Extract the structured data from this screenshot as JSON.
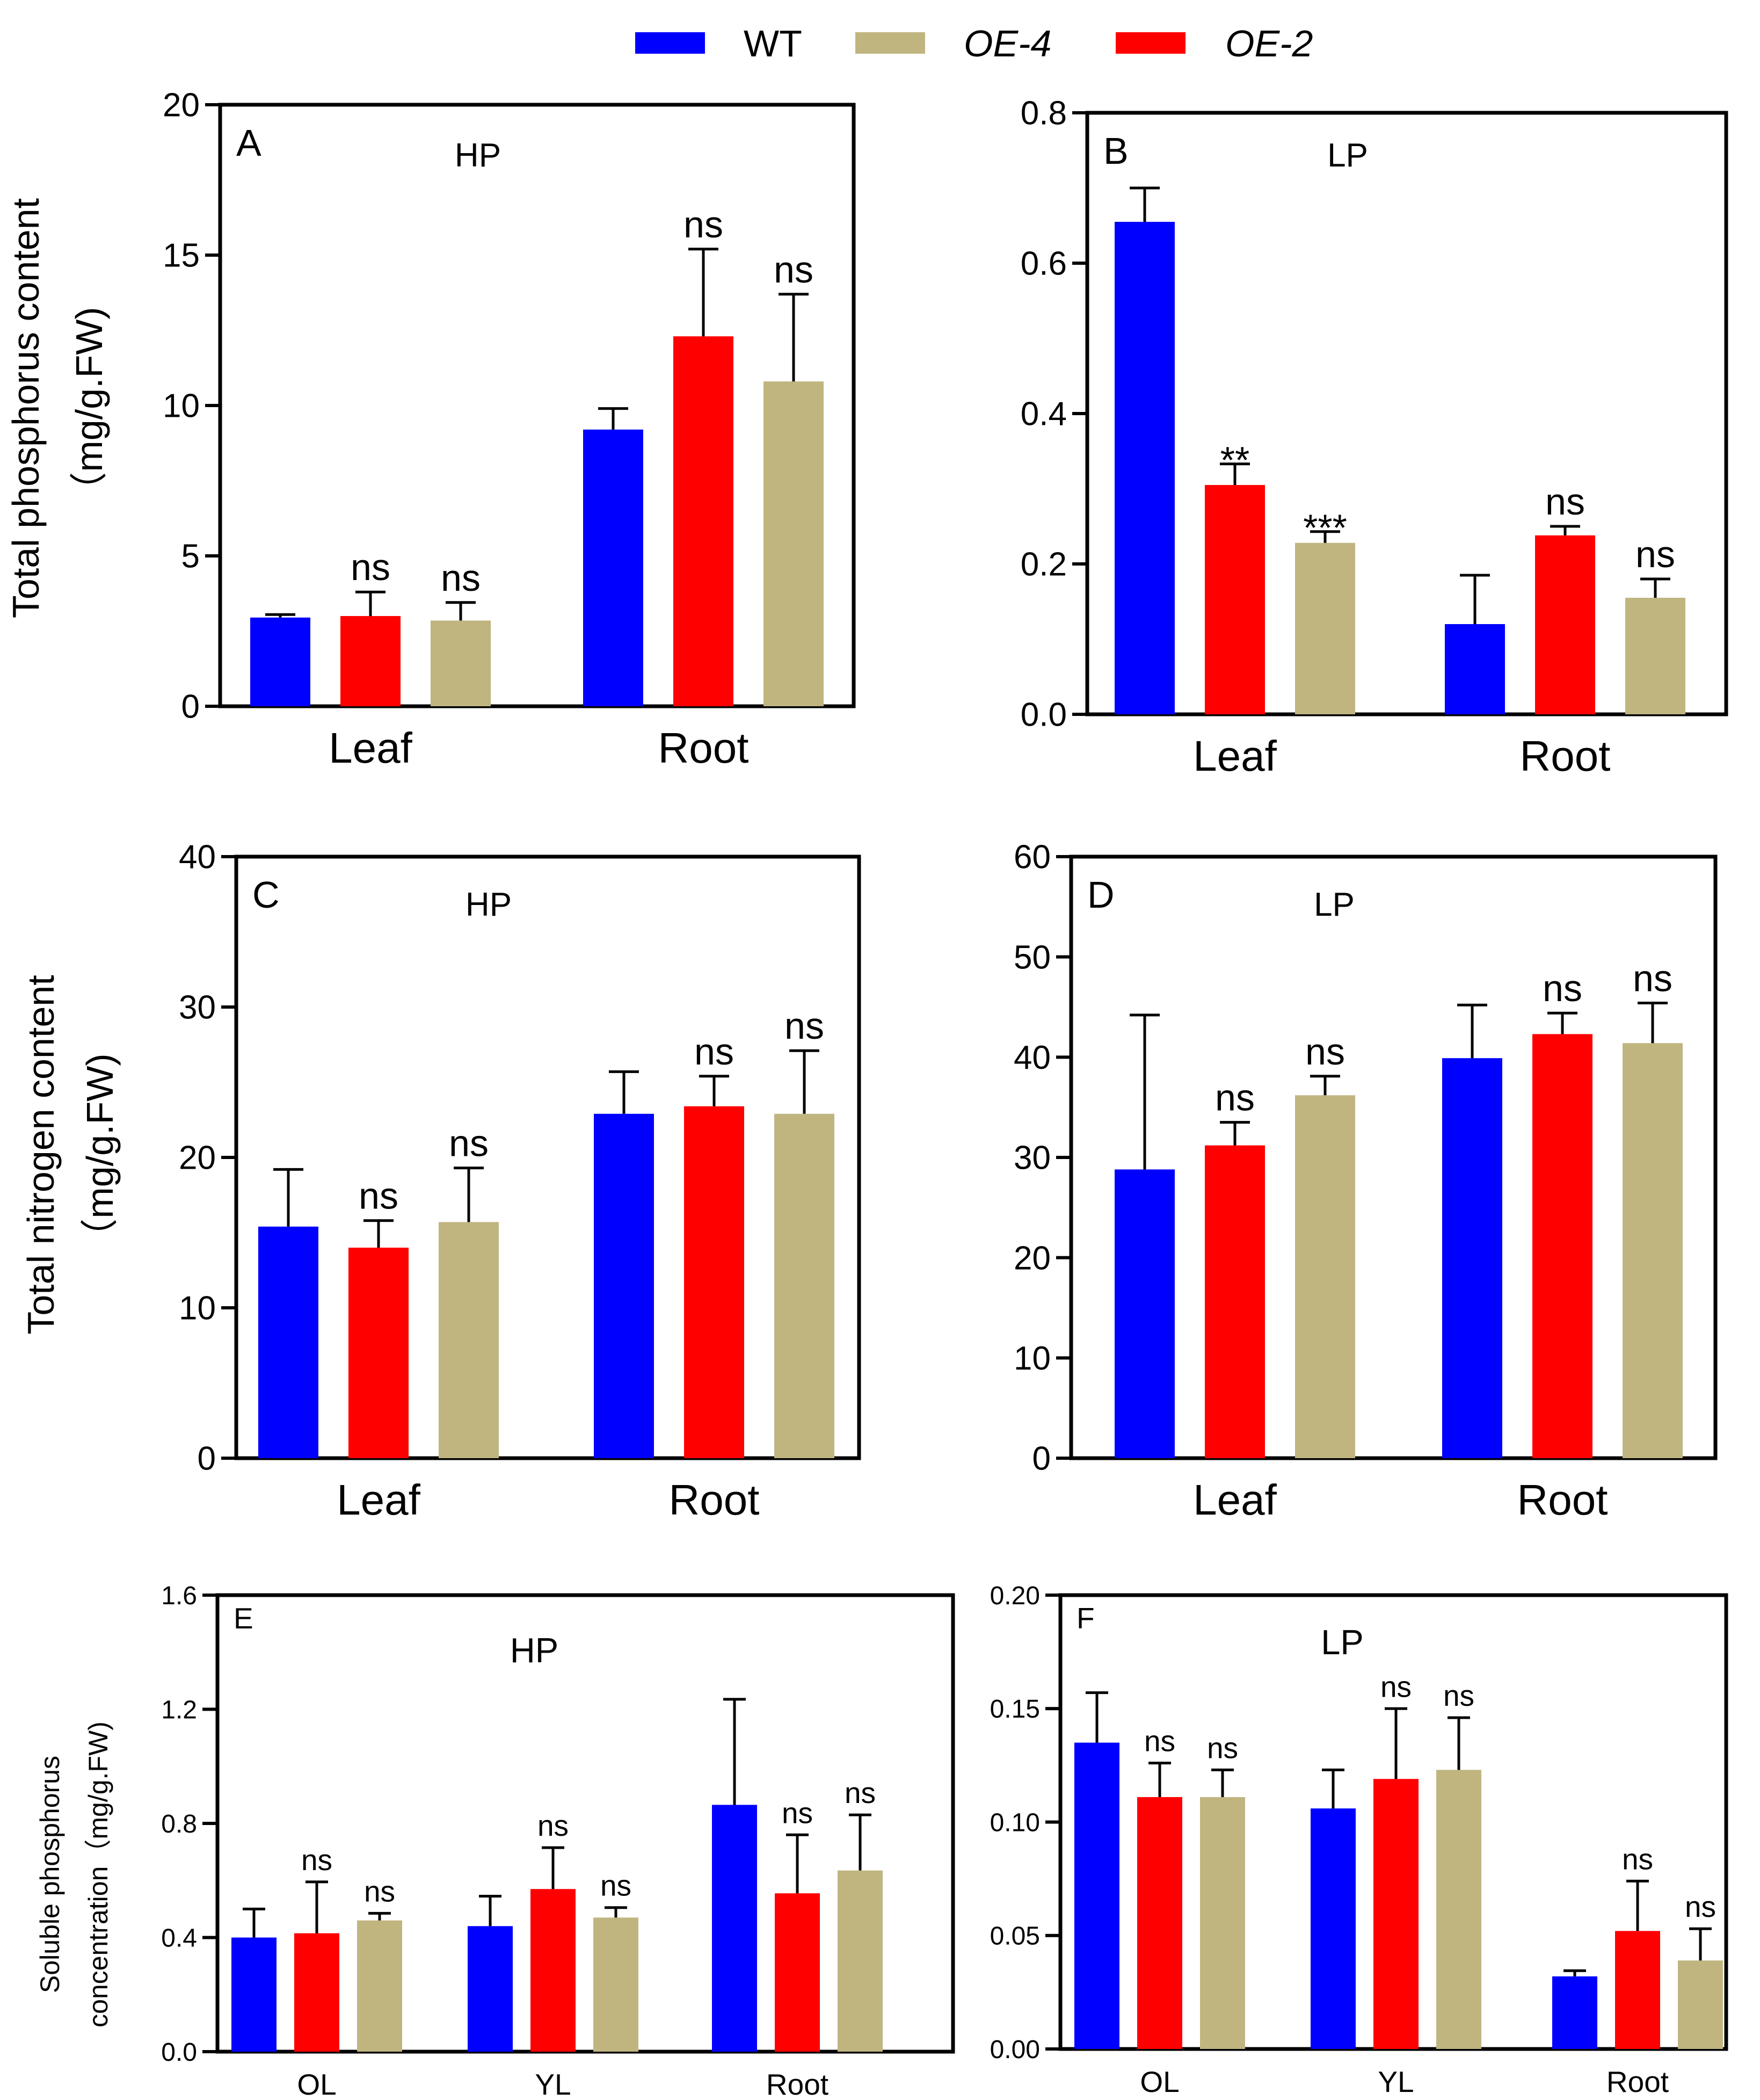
{
  "legend": [
    {
      "label": "WT",
      "color": "#0000ff",
      "italic": false
    },
    {
      "label": "OE-4",
      "color": "#c0b57f",
      "italic": true
    },
    {
      "label": "OE-2",
      "color": "#ff0000",
      "italic": true
    }
  ],
  "colors": {
    "WT": "#0000ff",
    "OE-2": "#ff0000",
    "OE-4": "#c0b57f"
  },
  "row_labels": {
    "phosphorus": [
      "Total phosphorus  content",
      "（mg/g.FW)"
    ],
    "nitrogen": [
      "Total nitrogen content",
      "（mg/g.FW)"
    ],
    "soluble": [
      "Soluble phosphorus",
      "concentration（mg/g.FW)"
    ]
  },
  "chart_data": [
    {
      "id": "A",
      "type": "bar",
      "panel_letter": "A",
      "title": "HP",
      "categories": [
        "Leaf",
        "Root"
      ],
      "ylim": [
        0,
        20
      ],
      "yticks": [
        "0",
        "5",
        "10",
        "15",
        "20"
      ],
      "series": [
        {
          "name": "WT",
          "values": [
            2.95,
            9.2
          ],
          "errors": [
            0.1,
            0.7
          ],
          "sig": [
            "",
            ""
          ]
        },
        {
          "name": "OE-2",
          "values": [
            3.0,
            12.3
          ],
          "errors": [
            0.8,
            2.9
          ],
          "sig": [
            "ns",
            "ns"
          ]
        },
        {
          "name": "OE-4",
          "values": [
            2.85,
            10.8
          ],
          "errors": [
            0.6,
            2.9
          ],
          "sig": [
            "ns",
            "ns"
          ]
        }
      ]
    },
    {
      "id": "B",
      "type": "bar",
      "panel_letter": "B",
      "title": "LP",
      "categories": [
        "Leaf",
        "Root"
      ],
      "ylim": [
        0,
        0.8
      ],
      "yticks": [
        "0.0",
        "0.2",
        "0.4",
        "0.6",
        "0.8"
      ],
      "series": [
        {
          "name": "WT",
          "values": [
            0.655,
            0.12
          ],
          "errors": [
            0.045,
            0.065
          ],
          "sig": [
            "",
            ""
          ]
        },
        {
          "name": "OE-2",
          "values": [
            0.305,
            0.238
          ],
          "errors": [
            0.028,
            0.012
          ],
          "sig": [
            "**",
            "ns"
          ]
        },
        {
          "name": "OE-4",
          "values": [
            0.228,
            0.155
          ],
          "errors": [
            0.015,
            0.025
          ],
          "sig": [
            "***",
            "ns"
          ]
        }
      ]
    },
    {
      "id": "C",
      "type": "bar",
      "panel_letter": "C",
      "title": "HP",
      "categories": [
        "Leaf",
        "Root"
      ],
      "ylim": [
        0,
        40
      ],
      "yticks": [
        "0",
        "10",
        "20",
        "30",
        "40"
      ],
      "series": [
        {
          "name": "WT",
          "values": [
            15.4,
            22.9
          ],
          "errors": [
            3.8,
            2.8
          ],
          "sig": [
            "",
            ""
          ]
        },
        {
          "name": "OE-2",
          "values": [
            14.0,
            23.4
          ],
          "errors": [
            1.8,
            2.0
          ],
          "sig": [
            "ns",
            "ns"
          ]
        },
        {
          "name": "OE-4",
          "values": [
            15.7,
            22.9
          ],
          "errors": [
            3.6,
            4.2
          ],
          "sig": [
            "ns",
            "ns"
          ]
        }
      ]
    },
    {
      "id": "D",
      "type": "bar",
      "panel_letter": "D",
      "title": "LP",
      "categories": [
        "Leaf",
        "Root"
      ],
      "ylim": [
        0,
        60
      ],
      "yticks": [
        "0",
        "10",
        "20",
        "30",
        "40",
        "50",
        "60"
      ],
      "series": [
        {
          "name": "WT",
          "values": [
            28.8,
            39.9
          ],
          "errors": [
            15.4,
            5.3
          ],
          "sig": [
            "",
            ""
          ]
        },
        {
          "name": "OE-2",
          "values": [
            31.2,
            42.3
          ],
          "errors": [
            2.3,
            2.1
          ],
          "sig": [
            "ns",
            "ns"
          ]
        },
        {
          "name": "OE-4",
          "values": [
            36.2,
            41.4
          ],
          "errors": [
            1.9,
            4.0
          ],
          "sig": [
            "ns",
            "ns"
          ]
        }
      ]
    },
    {
      "id": "E",
      "type": "bar",
      "panel_letter": "E",
      "title": "HP",
      "categories": [
        "OL",
        "YL",
        "Root"
      ],
      "ylim": [
        0,
        1.6
      ],
      "yticks": [
        "0.0",
        "0.4",
        "0.8",
        "1.2",
        "1.6"
      ],
      "series": [
        {
          "name": "WT",
          "values": [
            0.4,
            0.44,
            0.865
          ],
          "errors": [
            0.1,
            0.105,
            0.37
          ],
          "sig": [
            "",
            "",
            ""
          ]
        },
        {
          "name": "OE-2",
          "values": [
            0.415,
            0.57,
            0.555
          ],
          "errors": [
            0.18,
            0.145,
            0.205
          ],
          "sig": [
            "ns",
            "ns",
            "ns"
          ]
        },
        {
          "name": "OE-4",
          "values": [
            0.46,
            0.47,
            0.635
          ],
          "errors": [
            0.025,
            0.035,
            0.195
          ],
          "sig": [
            "ns",
            "ns",
            "ns"
          ]
        }
      ]
    },
    {
      "id": "F",
      "type": "bar",
      "panel_letter": "F",
      "title": "LP",
      "categories": [
        "OL",
        "YL",
        "Root"
      ],
      "ylim": [
        0,
        0.2
      ],
      "yticks": [
        "0.00",
        "0.05",
        "0.10",
        "0.15",
        "0.20"
      ],
      "series": [
        {
          "name": "WT",
          "values": [
            0.135,
            0.106,
            0.032
          ],
          "errors": [
            0.022,
            0.017,
            0.0025
          ],
          "sig": [
            "",
            "",
            ""
          ]
        },
        {
          "name": "OE-2",
          "values": [
            0.111,
            0.119,
            0.052
          ],
          "errors": [
            0.015,
            0.031,
            0.022
          ],
          "sig": [
            "ns",
            "ns",
            "ns"
          ]
        },
        {
          "name": "OE-4",
          "values": [
            0.111,
            0.123,
            0.039
          ],
          "errors": [
            0.012,
            0.023,
            0.014
          ],
          "sig": [
            "ns",
            "ns",
            "ns"
          ]
        }
      ]
    }
  ]
}
